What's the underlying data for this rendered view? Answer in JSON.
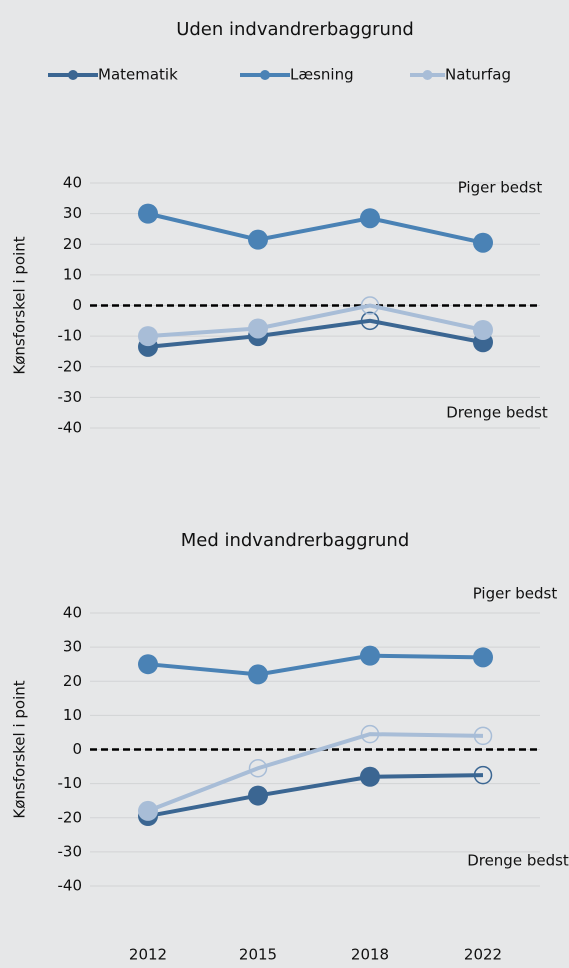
{
  "chart_data": [
    {
      "type": "line",
      "title": "Uden indvandrerbaggrund",
      "y_label": "Kønsforskel i point",
      "annotations": [
        "Piger bedst",
        "Drenge bedst"
      ],
      "categories": [
        null,
        null,
        null,
        null
      ],
      "series": [
        {
          "name": "Matematik",
          "color": "#3b6692",
          "values": [
            -13.5,
            -10,
            -5,
            -12
          ],
          "hollow": [
            false,
            false,
            true,
            false
          ]
        },
        {
          "name": "Læsning",
          "color": "#4a82b5",
          "values": [
            30,
            21.5,
            28.5,
            20.5
          ],
          "hollow": [
            false,
            false,
            false,
            false
          ]
        },
        {
          "name": "Naturfag",
          "color": "#a8bdd7",
          "values": [
            -10,
            -7.5,
            0,
            -8
          ],
          "hollow": [
            false,
            false,
            true,
            false
          ]
        }
      ],
      "ylim": [
        -40,
        40
      ],
      "yticks": [
        -40,
        -30,
        -20,
        -10,
        0,
        10,
        20,
        30,
        40
      ],
      "grid": true,
      "zero_line": true,
      "legend": "top"
    },
    {
      "type": "line",
      "title": "Med indvandrerbaggrund",
      "y_label": "Kønsforskel i point",
      "annotations": [
        "Piger bedst",
        "Drenge bedst"
      ],
      "categories": [
        "2012",
        "2015",
        "2018",
        "2022"
      ],
      "series": [
        {
          "color": "#3b6692",
          "values": [
            -19.5,
            -13.5,
            -8,
            -7.5
          ],
          "hollow": [
            false,
            false,
            false,
            true
          ]
        },
        {
          "color": "#4a82b5",
          "values": [
            25,
            22,
            27.5,
            27
          ],
          "hollow": [
            false,
            false,
            false,
            false
          ]
        },
        {
          "color": "#a8bdd7",
          "values": [
            -18,
            -5.5,
            4.5,
            4
          ],
          "hollow": [
            false,
            true,
            true,
            true
          ]
        }
      ],
      "ylim": [
        -40,
        40
      ],
      "yticks": [
        -40,
        -30,
        -20,
        -10,
        0,
        10,
        20,
        30,
        40
      ],
      "grid": true,
      "zero_line": true
    }
  ]
}
